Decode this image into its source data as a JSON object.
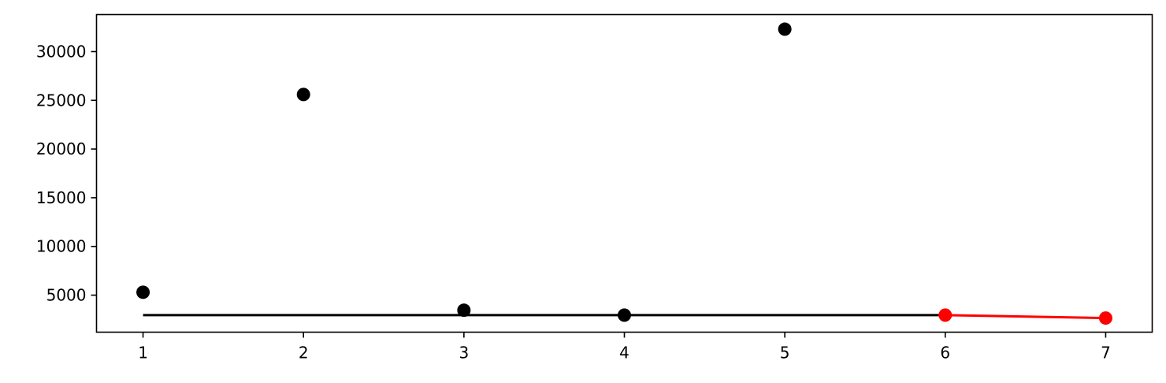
{
  "chart_data": {
    "type": "scatter",
    "title": "",
    "xlabel": "",
    "ylabel": "",
    "xlim": [
      0.71,
      7.29
    ],
    "ylim": [
      1200,
      33800
    ],
    "x_ticks": [
      "1",
      "2",
      "3",
      "4",
      "5",
      "6",
      "7"
    ],
    "y_ticks": [
      "5000",
      "10000",
      "15000",
      "20000",
      "25000",
      "30000"
    ],
    "grid": false,
    "legend": "none",
    "series": [
      {
        "type": "scatter",
        "color": "#000000",
        "points": [
          {
            "x": 1,
            "y": 5300
          },
          {
            "x": 2,
            "y": 25600
          },
          {
            "x": 3,
            "y": 3450
          },
          {
            "x": 4,
            "y": 2950
          },
          {
            "x": 5,
            "y": 32300
          }
        ]
      },
      {
        "type": "line",
        "color": "#000000",
        "points": [
          {
            "x": 1,
            "y": 2950
          },
          {
            "x": 6,
            "y": 2950
          }
        ]
      },
      {
        "type": "line-markers",
        "color": "#ff0000",
        "points": [
          {
            "x": 6,
            "y": 2950
          },
          {
            "x": 7,
            "y": 2650
          }
        ]
      }
    ]
  }
}
